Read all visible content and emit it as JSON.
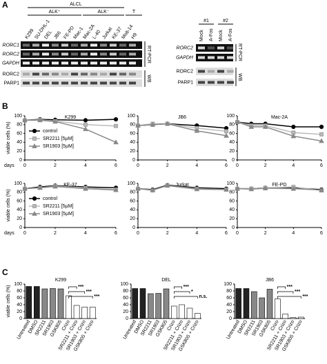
{
  "panel_labels": [
    "A",
    "B",
    "C"
  ],
  "panel_a": {
    "header": {
      "group": "ALCL",
      "subgroups": [
        "ALK⁺",
        "ALK⁻",
        "T"
      ]
    },
    "lanes": [
      "K299",
      "SU-DHL-1",
      "DEL",
      "JB6",
      "FE-PD",
      "Mac-1",
      "Mac-2A",
      "L-40",
      "Jurkat",
      "KE-37",
      "Molt-14",
      "H9"
    ],
    "rows": [
      "RORC1",
      "RORC2",
      "GAPDH",
      "RORC2",
      "PARP1"
    ],
    "methods": [
      "RT-PCR",
      "WB"
    ],
    "right": {
      "groups": [
        "#1",
        "#2"
      ],
      "lanes": [
        "Mock",
        "A-Fos",
        "Mock",
        "A-Fos"
      ],
      "rows": [
        "RORC2",
        "GAPDH",
        "RORC2",
        "PARP1"
      ],
      "methods": [
        "RT-PCR",
        "WB"
      ]
    }
  },
  "chart_data": [
    {
      "type": "line",
      "title": "K299",
      "x": [
        0,
        1,
        2,
        4,
        6
      ],
      "xlim": [
        0,
        6
      ],
      "xticks": [
        0,
        2,
        4,
        6
      ],
      "ylim": [
        0,
        100
      ],
      "yticks": [
        0,
        20,
        40,
        60,
        80,
        100
      ],
      "ylabel": "viable cells (%)",
      "xlabel": "days",
      "legend": true,
      "series": [
        {
          "name": "control",
          "color": "#000000",
          "marker": "circle",
          "values": [
            90,
            92,
            91,
            90,
            92
          ]
        },
        {
          "name": "SR2211 [5µM]",
          "color": "#bbbbbb",
          "marker": "square",
          "values": [
            90,
            91,
            88,
            80,
            77
          ]
        },
        {
          "name": "SR1903 [5µM]",
          "color": "#888888",
          "marker": "triangle",
          "values": [
            90,
            90,
            87,
            70,
            40
          ]
        }
      ]
    },
    {
      "type": "line",
      "title": "JB6",
      "x": [
        0,
        1,
        2,
        4,
        6
      ],
      "xlim": [
        0,
        6
      ],
      "xticks": [
        0,
        2,
        4,
        6
      ],
      "ylim": [
        0,
        100
      ],
      "yticks": [
        0,
        20,
        40,
        60,
        80,
        100
      ],
      "series": [
        {
          "color": "#000000",
          "marker": "circle",
          "values": [
            78,
            80,
            82,
            78,
            72
          ]
        },
        {
          "color": "#bbbbbb",
          "marker": "square",
          "values": [
            78,
            82,
            82,
            72,
            65
          ]
        },
        {
          "color": "#888888",
          "marker": "triangle",
          "values": [
            78,
            80,
            82,
            66,
            55
          ]
        }
      ]
    },
    {
      "type": "line",
      "title": "Mac-2A",
      "x": [
        0,
        1,
        2,
        4,
        6
      ],
      "xlim": [
        0,
        6
      ],
      "xticks": [
        0,
        2,
        4,
        6
      ],
      "ylim": [
        0,
        100
      ],
      "yticks": [
        0,
        20,
        40,
        60,
        80,
        100
      ],
      "series": [
        {
          "color": "#000000",
          "marker": "circle",
          "values": [
            86,
            82,
            82,
            75,
            75
          ]
        },
        {
          "color": "#bbbbbb",
          "marker": "square",
          "values": [
            86,
            78,
            78,
            62,
            58
          ]
        },
        {
          "color": "#888888",
          "marker": "triangle",
          "values": [
            86,
            75,
            75,
            54,
            43
          ]
        }
      ]
    },
    {
      "type": "line",
      "title": "KE-37",
      "x": [
        0,
        1,
        2,
        4,
        6
      ],
      "xlim": [
        0,
        6
      ],
      "xticks": [
        0,
        2,
        4,
        6
      ],
      "ylim": [
        0,
        100
      ],
      "yticks": [
        0,
        20,
        40,
        60,
        80,
        100
      ],
      "ylabel": "viable cells (%)",
      "xlabel": "days",
      "legend": true,
      "series": [
        {
          "name": "control",
          "color": "#000000",
          "marker": "circle",
          "values": [
            88,
            92,
            95,
            92,
            90
          ]
        },
        {
          "name": "SR2211 [5µM]",
          "color": "#bbbbbb",
          "marker": "square",
          "values": [
            88,
            90,
            94,
            90,
            86
          ]
        },
        {
          "name": "SR1903 [5µM]",
          "color": "#888888",
          "marker": "triangle",
          "values": [
            88,
            90,
            93,
            88,
            85
          ]
        }
      ]
    },
    {
      "type": "line",
      "title": "Jurkat",
      "x": [
        0,
        1,
        2,
        4,
        6
      ],
      "xlim": [
        0,
        6
      ],
      "xticks": [
        0,
        2,
        4,
        6
      ],
      "ylim": [
        0,
        100
      ],
      "yticks": [
        0,
        20,
        40,
        60,
        80,
        100
      ],
      "series": [
        {
          "color": "#000000",
          "marker": "circle",
          "values": [
            88,
            86,
            96,
            90,
            88
          ]
        },
        {
          "color": "#bbbbbb",
          "marker": "square",
          "values": [
            88,
            84,
            95,
            88,
            86
          ]
        },
        {
          "color": "#888888",
          "marker": "triangle",
          "values": [
            88,
            85,
            95,
            87,
            86
          ]
        }
      ]
    },
    {
      "type": "line",
      "title": "FE-PD",
      "x": [
        0,
        1,
        2,
        4,
        6
      ],
      "xlim": [
        0,
        6
      ],
      "xticks": [
        0,
        2,
        4,
        6
      ],
      "ylim": [
        0,
        100
      ],
      "yticks": [
        0,
        20,
        40,
        60,
        80,
        100
      ],
      "series": [
        {
          "color": "#000000",
          "marker": "circle",
          "values": [
            88,
            88,
            90,
            90,
            86
          ]
        },
        {
          "color": "#bbbbbb",
          "marker": "square",
          "values": [
            88,
            88,
            90,
            92,
            84
          ]
        },
        {
          "color": "#888888",
          "marker": "triangle",
          "values": [
            88,
            87,
            89,
            88,
            85
          ]
        }
      ]
    },
    {
      "type": "bar",
      "title": "K299",
      "ylabel": "viable cells (%)",
      "ylim": [
        0,
        100
      ],
      "yticks": [
        0,
        20,
        40,
        60,
        80,
        100
      ],
      "categories": [
        "Untreated",
        "DMSO",
        "SR2211",
        "SR1903",
        "GSK805",
        "Crizo",
        "SR2211 + Crizo",
        "SR1903 + Crizo",
        "GSK805 + Crizo"
      ],
      "colors": [
        "#222222",
        "#222222",
        "#888888",
        "#888888",
        "#888888",
        "#ffffff",
        "#ffffff",
        "#ffffff",
        "#ffffff"
      ],
      "values": [
        93,
        93,
        86,
        87,
        86,
        66,
        38,
        33,
        33
      ],
      "annotations": [
        "***",
        "***",
        "***"
      ]
    },
    {
      "type": "bar",
      "title": "DEL",
      "ylim": [
        0,
        100
      ],
      "yticks": [
        0,
        20,
        40,
        60,
        80,
        100
      ],
      "categories": [
        "Untreated",
        "DMSO",
        "SR2211",
        "SR1903",
        "GSK805",
        "Crizo",
        "SR2211 + Crizo",
        "SR1903 + Crizo",
        "GSK805 + Crizo"
      ],
      "colors": [
        "#222222",
        "#222222",
        "#888888",
        "#888888",
        "#888888",
        "#ffffff",
        "#ffffff",
        "#ffffff",
        "#ffffff"
      ],
      "values": [
        87,
        87,
        72,
        73,
        86,
        36,
        40,
        30,
        15
      ],
      "annotations": [
        "***",
        "*",
        "n.s."
      ]
    },
    {
      "type": "bar",
      "title": "JB6",
      "ylim": [
        0,
        100
      ],
      "yticks": [
        0,
        20,
        40,
        60,
        80,
        100
      ],
      "categories": [
        "Untreated",
        "DMSO",
        "SR2211",
        "SR1903",
        "GSK805",
        "Crizo",
        "SR2211 + Crizo",
        "SR1903 + Crizo",
        "GSK805 + Crizo"
      ],
      "colors": [
        "#222222",
        "#222222",
        "#888888",
        "#888888",
        "#888888",
        "#ffffff",
        "#ffffff",
        "#ffffff",
        "#ffffff"
      ],
      "values": [
        87,
        87,
        78,
        60,
        85,
        57,
        13,
        3,
        4
      ],
      "annotations": [
        "***",
        "***",
        "***"
      ]
    }
  ]
}
